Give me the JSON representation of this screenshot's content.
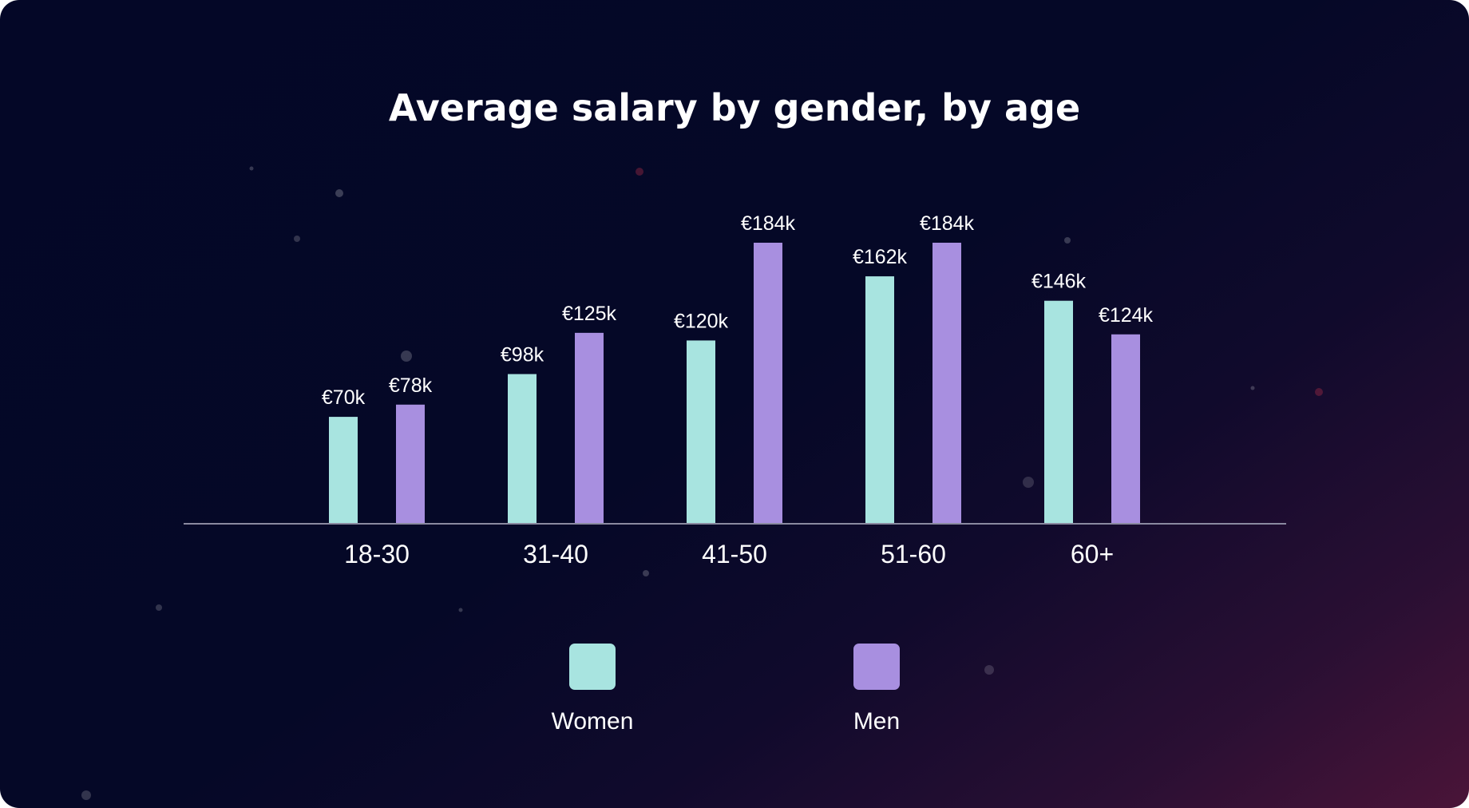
{
  "chart_data": {
    "type": "bar",
    "title": "Average salary by gender, by age",
    "categories": [
      "18-30",
      "31-40",
      "41-50",
      "51-60",
      "60+"
    ],
    "series": [
      {
        "name": "Women",
        "color": "#a8e4e0",
        "values": [
          70,
          98,
          120,
          162,
          146
        ],
        "labels": [
          "€70k",
          "€98k",
          "€120k",
          "€162k",
          "€146k"
        ]
      },
      {
        "name": "Men",
        "color": "#a88fe0",
        "values": [
          78,
          125,
          184,
          184,
          124
        ],
        "labels": [
          "€78k",
          "€125k",
          "€184k",
          "€184k",
          "€124k"
        ]
      }
    ],
    "xlabel": "",
    "ylabel": "",
    "ylim": [
      0,
      184
    ],
    "grid": false,
    "legend": "bottom"
  },
  "colors": {
    "background": "#040727",
    "background_accent": "#4a1438",
    "axis": "#8a8aa0",
    "text": "#ffffff"
  }
}
